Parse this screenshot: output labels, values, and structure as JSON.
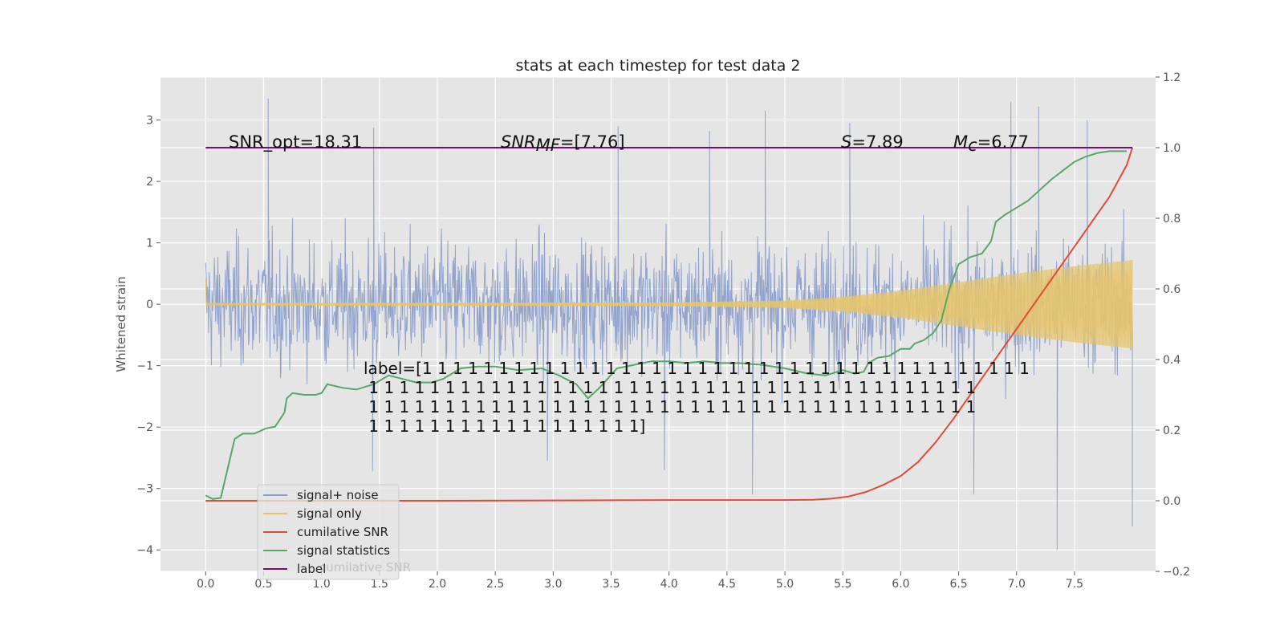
{
  "chart_data": {
    "type": "line",
    "title": "stats at each timestep for test data 2",
    "ylabel": "Whitened strain",
    "xlabel": "",
    "xlim": [
      -0.39,
      8.2
    ],
    "ylim": [
      -4.35,
      3.7
    ],
    "y2lim": [
      -0.2,
      1.2
    ],
    "grid": true,
    "x_ticks": [
      "0.0",
      "0.5",
      "1.0",
      "1.5",
      "2.0",
      "2.5",
      "3.0",
      "3.5",
      "4.0",
      "4.5",
      "5.0",
      "5.5",
      "6.0",
      "6.5",
      "7.0",
      "7.5"
    ],
    "y_ticks": [
      "3",
      "2",
      "1",
      "0",
      "−1",
      "−2",
      "−3",
      "−4"
    ],
    "y2_ticks": [
      "1.2",
      "1.0",
      "0.8",
      "0.6",
      "0.4",
      "0.2",
      "0.0",
      "−0.2"
    ],
    "annotations": {
      "snr_opt": "SNR_opt=18.31",
      "snr_mf_sym": "SNR",
      "snr_mf_sub": "MF",
      "snr_mf_val": "=[7.76]",
      "s_sym": "S",
      "s_val": "=7.89",
      "mc_sym": "M",
      "mc_sub": "c",
      "mc_val": "=6.77",
      "label_lines": [
        "label=[1 1 1 1 1 1 1 1 1 1 1 1 1 1 1 1 1 1 1 1 1 1 1 1 1 1 1 1 1 1 1 1 1 1 1 1 1 1 1 1",
        " 1 1 1 1 1 1 1 1 1 1 1 1 1 1 1 1 1 1 1 1 1 1 1 1 1 1 1 1 1 1 1 1 1 1 1 1 1 1 1 1",
        " 1 1 1 1 1 1 1 1 1 1 1 1 1 1 1 1 1 1 1 1 1 1 1 1 1 1 1 1 1 1 1 1 1 1 1 1 1 1 1 1",
        " 1 1 1 1 1 1 1 1 1 1 1 1 1 1 1 1 1 1]"
      ],
      "ghost_legend": "cumilative SNR"
    },
    "legend": {
      "placement": "lower-left",
      "entries": [
        "signal+ noise",
        "signal only",
        "cumilative SNR",
        "signal statistics",
        "label"
      ]
    },
    "series": [
      {
        "name": "signal+ noise",
        "axis": "left",
        "color": "#8da0cb",
        "style": "noise",
        "t_range": [
          0,
          8
        ],
        "band": [
          [
            0,
            1.3
          ],
          [
            2.0,
            1.35
          ],
          [
            4.0,
            1.35
          ],
          [
            6.0,
            1.4
          ],
          [
            8.0,
            1.4
          ]
        ],
        "extremes": [
          {
            "x": 0.54,
            "y": 3.35
          },
          {
            "x": 1.45,
            "y": 2.88
          },
          {
            "x": 3.56,
            "y": 2.9
          },
          {
            "x": 4.35,
            "y": 2.82
          },
          {
            "x": 4.83,
            "y": 3.15
          },
          {
            "x": 5.56,
            "y": 2.95
          },
          {
            "x": 6.95,
            "y": 3.3
          },
          {
            "x": 7.19,
            "y": 3.22
          },
          {
            "x": 7.61,
            "y": 3.0
          },
          {
            "x": 1.44,
            "y": -2.72
          },
          {
            "x": 2.95,
            "y": -2.55
          },
          {
            "x": 3.96,
            "y": -2.7
          },
          {
            "x": 4.72,
            "y": -3.1
          },
          {
            "x": 6.63,
            "y": -3.1
          },
          {
            "x": 7.35,
            "y": -4.0
          },
          {
            "x": 8.0,
            "y": -3.62
          }
        ],
        "limits": [
          -2.3,
          2.4
        ]
      },
      {
        "name": "signal only",
        "axis": "left",
        "color": "#e5c46b",
        "style": "chirp",
        "envelope": [
          [
            0,
            0.02
          ],
          [
            4.0,
            0.03
          ],
          [
            5.0,
            0.06
          ],
          [
            5.5,
            0.12
          ],
          [
            6.0,
            0.22
          ],
          [
            6.5,
            0.36
          ],
          [
            7.0,
            0.5
          ],
          [
            7.5,
            0.62
          ],
          [
            8.0,
            0.72
          ]
        ],
        "start_spike": 0.42
      },
      {
        "name": "cumilative SNR",
        "axis": "right",
        "color": "#e24a33",
        "points": [
          [
            0.0,
            0.0
          ],
          [
            1.0,
            0.0
          ],
          [
            2.0,
            0.0
          ],
          [
            3.0,
            0.001
          ],
          [
            4.0,
            0.002
          ],
          [
            5.0,
            0.002
          ],
          [
            5.25,
            0.003
          ],
          [
            5.4,
            0.006
          ],
          [
            5.55,
            0.012
          ],
          [
            5.7,
            0.025
          ],
          [
            5.85,
            0.045
          ],
          [
            6.0,
            0.07
          ],
          [
            6.15,
            0.11
          ],
          [
            6.3,
            0.165
          ],
          [
            6.45,
            0.23
          ],
          [
            6.6,
            0.3
          ],
          [
            6.75,
            0.37
          ],
          [
            6.9,
            0.44
          ],
          [
            7.05,
            0.51
          ],
          [
            7.2,
            0.58
          ],
          [
            7.35,
            0.65
          ],
          [
            7.5,
            0.72
          ],
          [
            7.65,
            0.79
          ],
          [
            7.8,
            0.86
          ],
          [
            7.95,
            0.95
          ],
          [
            8.0,
            1.0
          ]
        ]
      },
      {
        "name": "signal statistics",
        "axis": "right",
        "color": "#55a868",
        "points": [
          [
            0.0,
            0.015
          ],
          [
            0.06,
            0.005
          ],
          [
            0.13,
            0.008
          ],
          [
            0.25,
            0.175
          ],
          [
            0.32,
            0.19
          ],
          [
            0.42,
            0.19
          ],
          [
            0.52,
            0.205
          ],
          [
            0.6,
            0.21
          ],
          [
            0.68,
            0.25
          ],
          [
            0.7,
            0.29
          ],
          [
            0.75,
            0.305
          ],
          [
            0.85,
            0.3
          ],
          [
            0.95,
            0.3
          ],
          [
            1.0,
            0.305
          ],
          [
            1.05,
            0.33
          ],
          [
            1.18,
            0.32
          ],
          [
            1.3,
            0.315
          ],
          [
            1.45,
            0.33
          ],
          [
            1.58,
            0.355
          ],
          [
            1.7,
            0.345
          ],
          [
            1.82,
            0.335
          ],
          [
            1.95,
            0.335
          ],
          [
            2.05,
            0.345
          ],
          [
            2.2,
            0.375
          ],
          [
            2.35,
            0.38
          ],
          [
            2.5,
            0.38
          ],
          [
            2.7,
            0.37
          ],
          [
            2.9,
            0.375
          ],
          [
            3.05,
            0.355
          ],
          [
            3.2,
            0.33
          ],
          [
            3.3,
            0.29
          ],
          [
            3.4,
            0.32
          ],
          [
            3.55,
            0.375
          ],
          [
            3.7,
            0.385
          ],
          [
            3.85,
            0.395
          ],
          [
            4.0,
            0.395
          ],
          [
            4.15,
            0.39
          ],
          [
            4.3,
            0.395
          ],
          [
            4.45,
            0.39
          ],
          [
            4.6,
            0.39
          ],
          [
            4.8,
            0.385
          ],
          [
            5.0,
            0.375
          ],
          [
            5.2,
            0.36
          ],
          [
            5.35,
            0.355
          ],
          [
            5.5,
            0.37
          ],
          [
            5.6,
            0.36
          ],
          [
            5.68,
            0.365
          ],
          [
            5.72,
            0.39
          ],
          [
            5.8,
            0.405
          ],
          [
            5.9,
            0.41
          ],
          [
            6.0,
            0.43
          ],
          [
            6.08,
            0.43
          ],
          [
            6.12,
            0.445
          ],
          [
            6.2,
            0.455
          ],
          [
            6.28,
            0.475
          ],
          [
            6.35,
            0.51
          ],
          [
            6.42,
            0.6
          ],
          [
            6.5,
            0.67
          ],
          [
            6.6,
            0.69
          ],
          [
            6.7,
            0.7
          ],
          [
            6.78,
            0.735
          ],
          [
            6.82,
            0.79
          ],
          [
            6.9,
            0.81
          ],
          [
            7.0,
            0.83
          ],
          [
            7.1,
            0.85
          ],
          [
            7.2,
            0.88
          ],
          [
            7.3,
            0.91
          ],
          [
            7.4,
            0.935
          ],
          [
            7.5,
            0.96
          ],
          [
            7.6,
            0.975
          ],
          [
            7.7,
            0.985
          ],
          [
            7.8,
            0.99
          ],
          [
            7.95,
            0.99
          ]
        ]
      },
      {
        "name": "label",
        "axis": "right",
        "color": "#7b0c75",
        "points": [
          [
            0.0,
            1.0
          ],
          [
            8.0,
            1.0
          ]
        ]
      }
    ]
  }
}
